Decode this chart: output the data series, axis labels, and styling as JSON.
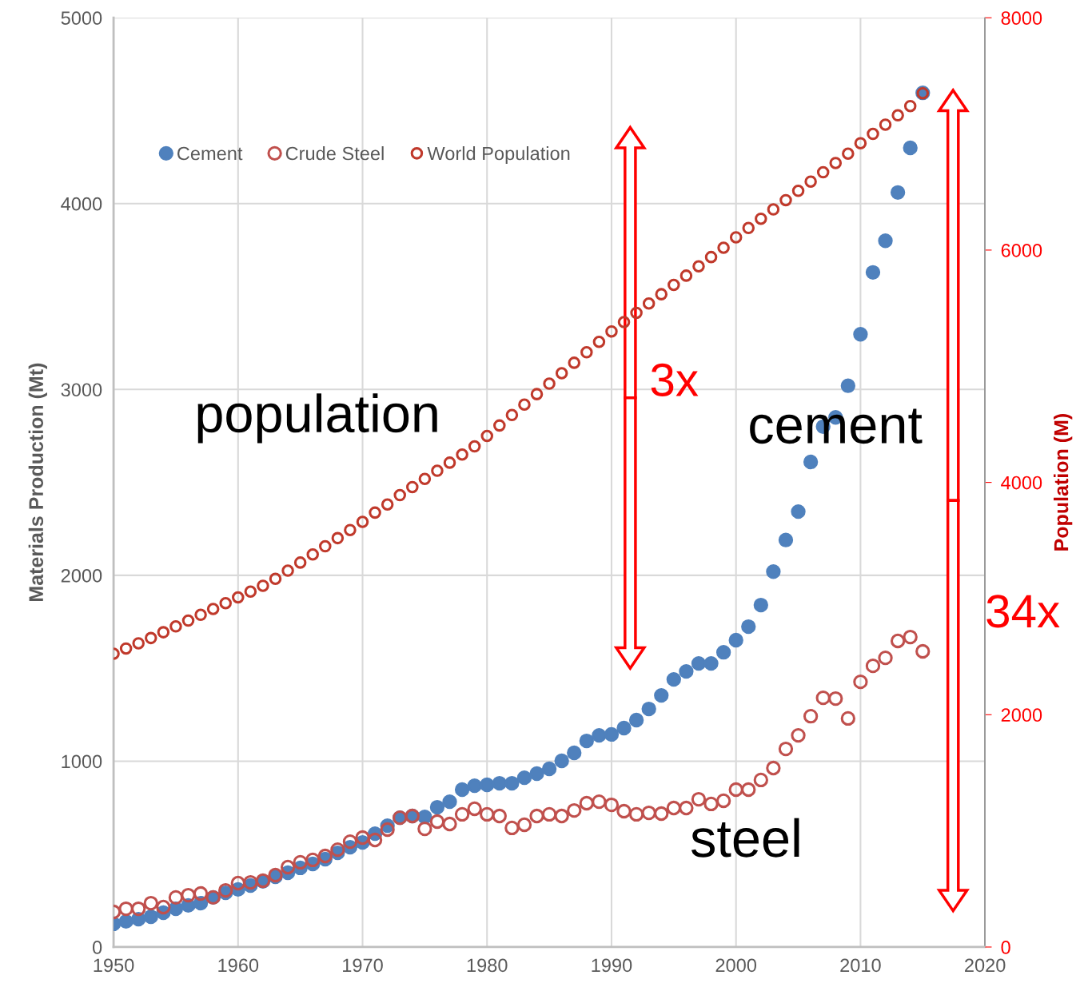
{
  "chart_data": {
    "type": "scatter",
    "x": [
      1950,
      1951,
      1952,
      1953,
      1954,
      1955,
      1956,
      1957,
      1958,
      1959,
      1960,
      1961,
      1962,
      1963,
      1964,
      1965,
      1966,
      1967,
      1968,
      1969,
      1970,
      1971,
      1972,
      1973,
      1974,
      1975,
      1976,
      1977,
      1978,
      1979,
      1980,
      1981,
      1982,
      1983,
      1984,
      1985,
      1986,
      1987,
      1988,
      1989,
      1990,
      1991,
      1992,
      1993,
      1994,
      1995,
      1996,
      1997,
      1998,
      1999,
      2000,
      2001,
      2002,
      2003,
      2004,
      2005,
      2006,
      2007,
      2008,
      2009,
      2010,
      2011,
      2012,
      2013,
      2014,
      2015
    ],
    "series": [
      {
        "name": "Cement",
        "color": "#4f81bd",
        "marker": "circle",
        "values": [
          125,
          138,
          150,
          163,
          185,
          206,
          224,
          236,
          267,
          292,
          310,
          331,
          353,
          378,
          400,
          426,
          447,
          473,
          507,
          537,
          563,
          610,
          653,
          696,
          705,
          700,
          752,
          782,
          847,
          868,
          873,
          881,
          881,
          911,
          933,
          959,
          1002,
          1045,
          1109,
          1139,
          1144,
          1178,
          1221,
          1281,
          1354,
          1440,
          1483,
          1526,
          1526,
          1586,
          1651,
          1724,
          1840,
          2020,
          2190,
          2343,
          2610,
          2800,
          2850,
          3020,
          3297,
          3630,
          3800,
          4060,
          4300,
          4596
        ]
      },
      {
        "name": "Crude Steel",
        "color": "#c0504d",
        "marker": "circle",
        "values": [
          189,
          206,
          206,
          236,
          215,
          267,
          279,
          288,
          267,
          305,
          344,
          348,
          357,
          387,
          430,
          456,
          469,
          490,
          524,
          567,
          589,
          576,
          632,
          696,
          705,
          636,
          675,
          662,
          714,
          744,
          714,
          705,
          641,
          658,
          705,
          714,
          705,
          735,
          774,
          782,
          765,
          731,
          714,
          722,
          718,
          748,
          748,
          795,
          770,
          787,
          847,
          847,
          899,
          963,
          1066,
          1139,
          1242,
          1341,
          1337,
          1230,
          1427,
          1513,
          1556,
          1647,
          1668,
          1591
        ]
      },
      {
        "name": "World Population",
        "color": "#c0392b",
        "marker": "circle",
        "axis": "y2",
        "values": [
          2525,
          2570,
          2615,
          2660,
          2710,
          2760,
          2810,
          2860,
          2910,
          2960,
          3010,
          3060,
          3110,
          3170,
          3240,
          3310,
          3380,
          3450,
          3520,
          3590,
          3660,
          3740,
          3810,
          3890,
          3960,
          4030,
          4100,
          4170,
          4240,
          4310,
          4400,
          4490,
          4580,
          4670,
          4760,
          4850,
          4940,
          5030,
          5120,
          5210,
          5300,
          5380,
          5460,
          5540,
          5620,
          5700,
          5780,
          5860,
          5940,
          6020,
          6110,
          6190,
          6270,
          6350,
          6430,
          6510,
          6590,
          6670,
          6750,
          6830,
          6920,
          7000,
          7080,
          7160,
          7240,
          7350
        ]
      }
    ],
    "ylabel": "Materials Production (Mt)",
    "y2label": "Population (M)",
    "xlim": [
      1950,
      2020
    ],
    "xticks": [
      1950,
      1960,
      1970,
      1980,
      1990,
      2000,
      2010,
      2020
    ],
    "ylim": [
      0,
      5000
    ],
    "yticks": [
      0,
      1000,
      2000,
      3000,
      4000,
      5000
    ],
    "y2lim": [
      0,
      8000
    ],
    "y2ticks": [
      0,
      2000,
      4000,
      6000,
      8000
    ],
    "grid": true,
    "legend": "top left",
    "annotations": [
      "population",
      "cement",
      "steel",
      "3x",
      "34x"
    ]
  }
}
